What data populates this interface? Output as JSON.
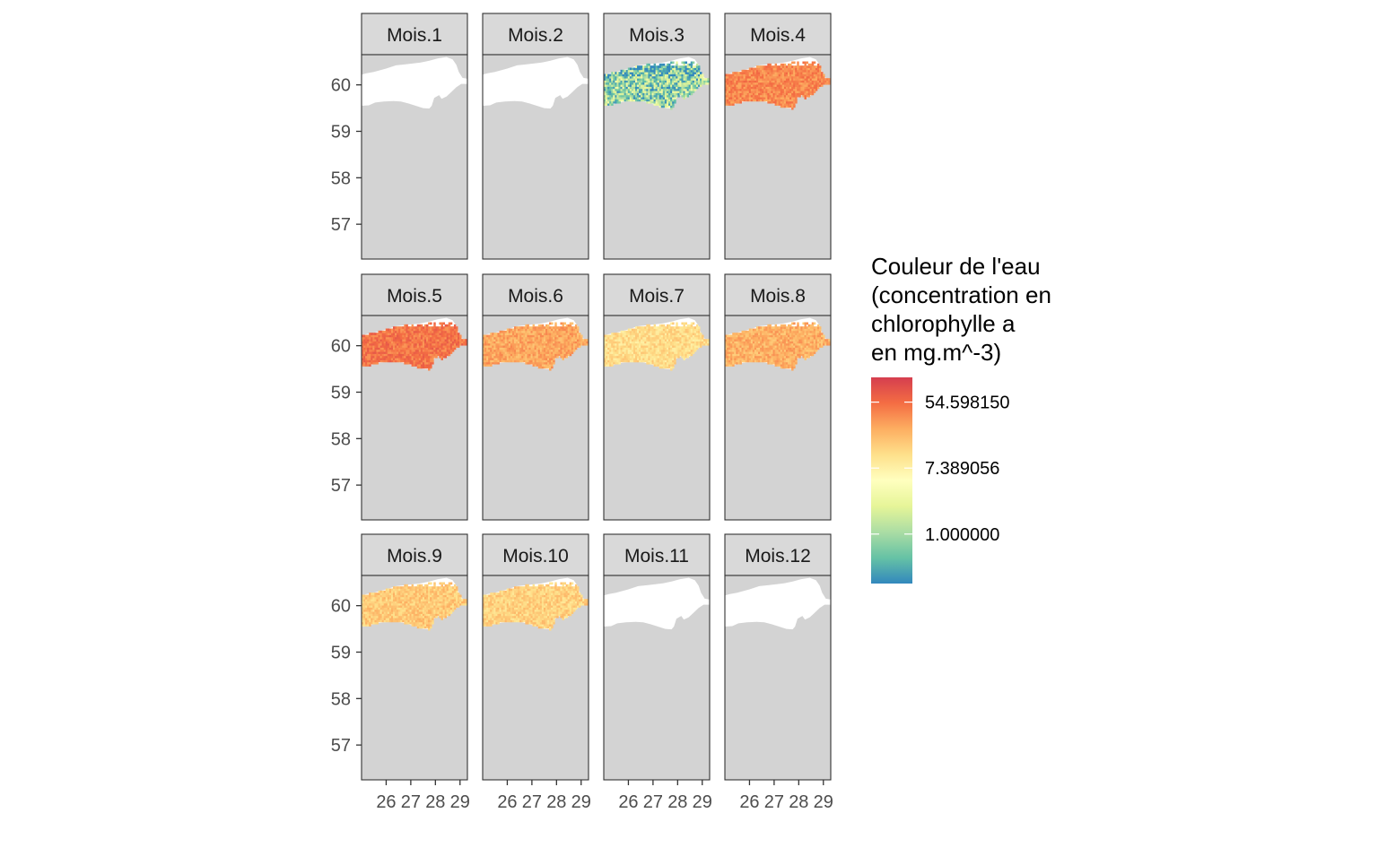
{
  "chart_data": {
    "type": "heatmap",
    "facet_labels": [
      "Mois.1",
      "Mois.2",
      "Mois.3",
      "Mois.4",
      "Mois.5",
      "Mois.6",
      "Mois.7",
      "Mois.8",
      "Mois.9",
      "Mois.10",
      "Mois.11",
      "Mois.12"
    ],
    "y_ticks": [
      60,
      59,
      58,
      57
    ],
    "x_ticks": [
      26,
      27,
      28,
      29
    ],
    "xlim": [
      25.0,
      29.3
    ],
    "ylim": [
      56.25,
      60.65
    ],
    "colors": {
      "land": "#d3d3d3",
      "water": "#ffffff",
      "strip": "#d9d9d9",
      "border": "#333333"
    },
    "facet_data_level": [
      null,
      null,
      0.22,
      0.82,
      0.86,
      0.76,
      0.63,
      0.74,
      0.68,
      0.66,
      null,
      null
    ],
    "legend": {
      "title_lines": [
        "Couleur de l'eau",
        "(concentration en",
        "chlorophylle a",
        "en mg.m^-3)"
      ],
      "labels": [
        "54.598150",
        "7.389056",
        "1.000000"
      ],
      "label_positions": [
        0.88,
        0.56,
        0.24
      ],
      "palette": [
        "#3288bd",
        "#66c2a5",
        "#abdda4",
        "#e6f598",
        "#ffffbf",
        "#fee08b",
        "#fdae61",
        "#f46d43",
        "#d53e4f"
      ]
    }
  }
}
